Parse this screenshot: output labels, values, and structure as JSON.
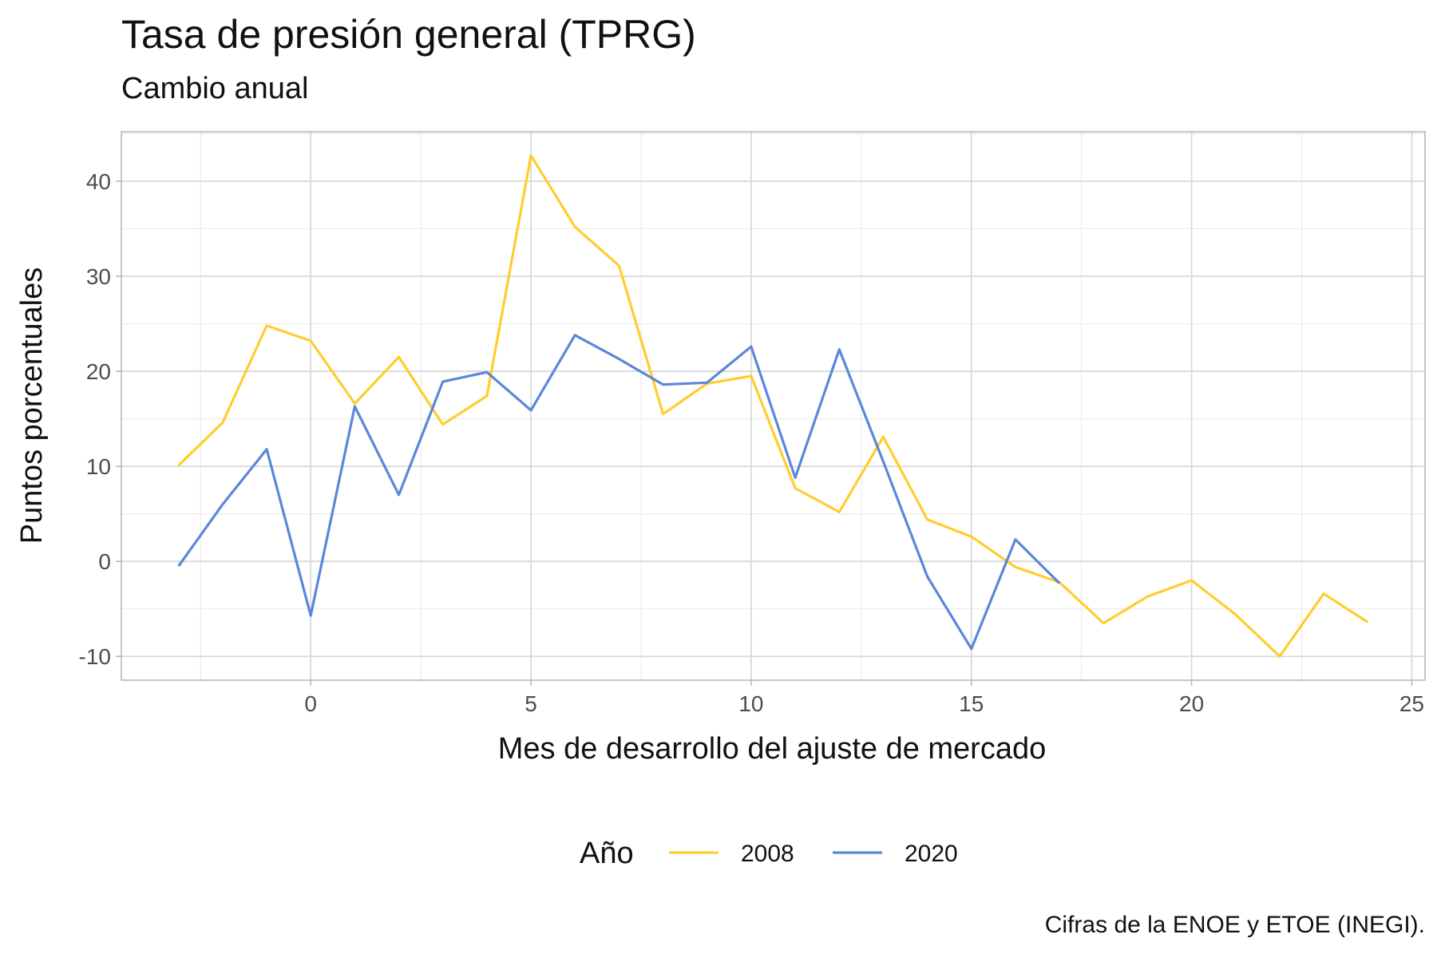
{
  "chart_data": {
    "type": "line",
    "title": "Tasa de presión general (TPRG)",
    "subtitle": "Cambio anual",
    "caption": "Cifras de la ENOE y ETOE (INEGI).",
    "xlabel": "Mes de desarrollo del ajuste de mercado",
    "ylabel": "Puntos porcentuales",
    "xlim": [
      -4.3,
      25.3
    ],
    "ylim": [
      -12.5,
      45.2
    ],
    "x_ticks": [
      0,
      5,
      10,
      15,
      20,
      25
    ],
    "y_ticks": [
      -10,
      0,
      10,
      20,
      30,
      40
    ],
    "x_tick_labels": [
      "0",
      "5",
      "10",
      "15",
      "20",
      "25"
    ],
    "y_tick_labels": [
      "-10",
      "0",
      "10",
      "20",
      "30",
      "40"
    ],
    "grid": true,
    "legend": {
      "title": "Año",
      "position": "bottom"
    },
    "series": [
      {
        "name": "2008",
        "color": "#FFCD2E",
        "x": [
          -3,
          -2,
          -1,
          0,
          1,
          2,
          3,
          4,
          5,
          6,
          7,
          8,
          9,
          10,
          11,
          12,
          13,
          14,
          15,
          16,
          17,
          18,
          19,
          20,
          21,
          22,
          23,
          24
        ],
        "y": [
          10.1,
          14.6,
          24.8,
          23.2,
          16.6,
          21.5,
          14.4,
          17.4,
          42.7,
          35.2,
          31.1,
          15.5,
          18.7,
          19.5,
          7.7,
          5.2,
          13.1,
          4.4,
          2.6,
          -0.6,
          -2.2,
          -6.5,
          -3.7,
          -2.0,
          -5.6,
          -10.0,
          -3.4,
          -6.4
        ]
      },
      {
        "name": "2020",
        "color": "#5B87D9",
        "x": [
          -3,
          -2,
          -1,
          0,
          1,
          2,
          3,
          4,
          5,
          6,
          7,
          8,
          9,
          10,
          11,
          12,
          13,
          14,
          15,
          16,
          17
        ],
        "y": [
          -0.5,
          6.0,
          11.8,
          -5.7,
          16.3,
          7.0,
          18.9,
          19.9,
          15.9,
          23.8,
          21.3,
          18.6,
          18.8,
          22.6,
          8.8,
          22.3,
          10.5,
          -1.6,
          -9.2,
          2.3,
          -2.3
        ]
      }
    ]
  }
}
